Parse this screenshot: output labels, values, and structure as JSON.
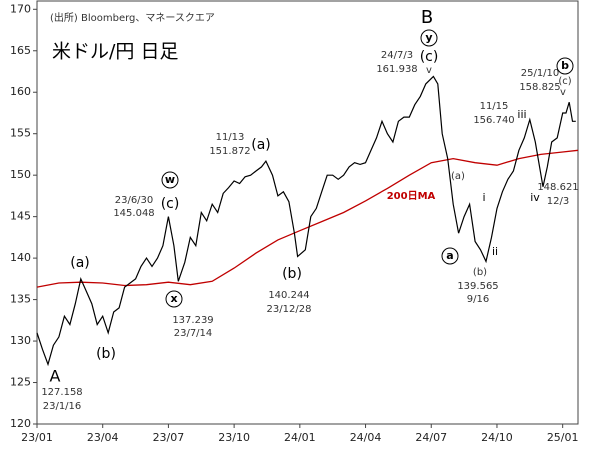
{
  "chart_data": {
    "type": "line",
    "title": "米ドル/円 日足",
    "source": "(出所) Bloomberg、マネースクエア",
    "xlim": [
      0,
      24.7
    ],
    "ylim": [
      120,
      171
    ],
    "xticks": [
      {
        "value": 0,
        "label": "23/01"
      },
      {
        "value": 3,
        "label": "23/04"
      },
      {
        "value": 6,
        "label": "23/07"
      },
      {
        "value": 9,
        "label": "23/10"
      },
      {
        "value": 12,
        "label": "24/01"
      },
      {
        "value": 15,
        "label": "24/04"
      },
      {
        "value": 18,
        "label": "24/07"
      },
      {
        "value": 21,
        "label": "24/10"
      },
      {
        "value": 24,
        "label": "25/01"
      }
    ],
    "yticks": [
      120,
      125,
      130,
      135,
      140,
      145,
      150,
      155,
      160,
      165,
      170
    ],
    "price": {
      "color": "#000000",
      "x": [
        0,
        0.25,
        0.5,
        0.75,
        1,
        1.25,
        1.5,
        1.75,
        2,
        2.25,
        2.5,
        2.75,
        3,
        3.25,
        3.5,
        3.75,
        4,
        4.25,
        4.5,
        4.75,
        5,
        5.25,
        5.5,
        5.75,
        6,
        6.25,
        6.45,
        6.75,
        7,
        7.25,
        7.5,
        7.75,
        8,
        8.25,
        8.5,
        8.75,
        9,
        9.25,
        9.5,
        9.75,
        10,
        10.25,
        10.45,
        10.75,
        11,
        11.25,
        11.5,
        11.75,
        11.9,
        12.25,
        12.5,
        12.75,
        13,
        13.25,
        13.5,
        13.75,
        14,
        14.25,
        14.5,
        14.75,
        15,
        15.25,
        15.5,
        15.75,
        16,
        16.25,
        16.5,
        16.75,
        17,
        17.25,
        17.5,
        17.75,
        18.1,
        18.3,
        18.5,
        18.75,
        19,
        19.25,
        19.5,
        19.75,
        20,
        20.25,
        20.5,
        20.75,
        21,
        21.25,
        21.5,
        21.75,
        22,
        22.25,
        22.5,
        22.75,
        23.1,
        23.3,
        23.5,
        23.75,
        24,
        24.15,
        24.3,
        24.45,
        24.6
      ],
      "values": [
        131,
        129,
        127.2,
        129.5,
        130.5,
        133,
        132,
        134.5,
        137.5,
        136,
        134.5,
        132,
        133,
        131,
        133.5,
        134,
        136.5,
        137,
        137.5,
        139,
        140,
        139,
        140,
        141.5,
        145,
        141.5,
        137.2,
        139.5,
        142.5,
        141.5,
        145.5,
        144.5,
        146.5,
        145.5,
        147.8,
        148.5,
        149.3,
        149,
        149.8,
        150,
        150.5,
        151,
        151.7,
        150,
        147.5,
        148,
        146.8,
        143,
        140.2,
        141,
        145,
        146,
        148,
        150,
        150,
        149.5,
        150,
        151,
        151.5,
        151.3,
        151.5,
        153,
        154.5,
        156.5,
        155,
        154,
        156.5,
        157,
        157,
        158.5,
        159.5,
        161,
        161.9,
        161,
        155,
        152,
        146.5,
        143,
        145,
        146.5,
        142,
        141,
        139.6,
        142.5,
        146,
        148,
        149.5,
        150.5,
        153,
        154.5,
        156.7,
        154,
        148.6,
        151,
        154,
        154.5,
        157.5,
        157.5,
        158.8,
        156.5,
        156.5
      ]
    },
    "ma": {
      "name": "200日MA",
      "color": "#c00000",
      "x": [
        0,
        1,
        2,
        3,
        4,
        5,
        6,
        7,
        8,
        9,
        10,
        11,
        12,
        13,
        14,
        15,
        16,
        17,
        18,
        19,
        20,
        21,
        22,
        23,
        24,
        24.7
      ],
      "values": [
        136.5,
        137,
        137.1,
        137,
        136.7,
        136.8,
        137.1,
        136.8,
        137.2,
        138.8,
        140.6,
        142.2,
        143.3,
        144.4,
        145.5,
        146.9,
        148.4,
        150,
        151.5,
        152,
        151.5,
        151.2,
        152,
        152.5,
        152.8,
        153
      ]
    },
    "labels": [
      "A",
      "127.158",
      "23/1/16",
      "(a)",
      "(b)",
      "23/6/30",
      "145.048",
      "(c)",
      "137.239",
      "23/7/14",
      "11/13",
      "151.872",
      "(a)",
      "(b)",
      "140.244",
      "23/12/28",
      "24/7/3",
      "161.938",
      "B",
      "(c)",
      "v",
      "(a)",
      "(b)",
      "139.565",
      "9/16",
      "i",
      "ii",
      "iii",
      "iv",
      "11/15",
      "156.740",
      "25/1/10",
      "158.825",
      "(c)",
      "v",
      "148.621",
      "12/3"
    ],
    "circled": [
      "w",
      "x",
      "y",
      "a",
      "b"
    ]
  }
}
